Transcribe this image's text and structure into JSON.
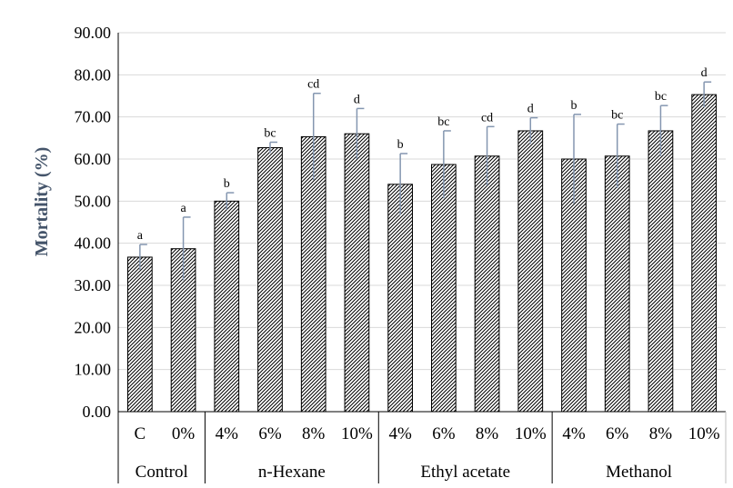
{
  "chart_data": {
    "type": "bar",
    "title": "",
    "xlabel": "",
    "ylabel": "Mortality (%)",
    "ylim": [
      0,
      90
    ],
    "yticks": [
      "0.00",
      "10.00",
      "20.00",
      "30.00",
      "40.00",
      "50.00",
      "60.00",
      "70.00",
      "80.00",
      "90.00"
    ],
    "grid": true,
    "legend": "none",
    "bar_pattern": "diagonal-hatch",
    "error_bar_color": "#8496b0",
    "groups": [
      {
        "name": "Control",
        "start": 0,
        "count": 2
      },
      {
        "name": "n-Hexane",
        "start": 2,
        "count": 4
      },
      {
        "name": "Ethyl acetate",
        "start": 6,
        "count": 4
      },
      {
        "name": "Methanol",
        "start": 10,
        "count": 4
      }
    ],
    "categories": [
      "C",
      "0%",
      "4%",
      "6%",
      "8%",
      "10%",
      "4%",
      "6%",
      "8%",
      "10%",
      "4%",
      "6%",
      "8%",
      "10%"
    ],
    "values": [
      36.7,
      38.7,
      50.0,
      62.7,
      65.3,
      66.0,
      54.0,
      58.7,
      60.7,
      66.7,
      60.0,
      60.7,
      66.7,
      75.3
    ],
    "errors": [
      3.0,
      7.5,
      2.0,
      1.3,
      10.3,
      6.0,
      7.3,
      8.0,
      7.0,
      3.1,
      10.6,
      7.6,
      6.0,
      3.0
    ],
    "significance": [
      "a",
      "a",
      "b",
      "bc",
      "cd",
      "d",
      "b",
      "bc",
      "cd",
      "d",
      "b",
      "bc",
      "bc",
      "d"
    ]
  }
}
